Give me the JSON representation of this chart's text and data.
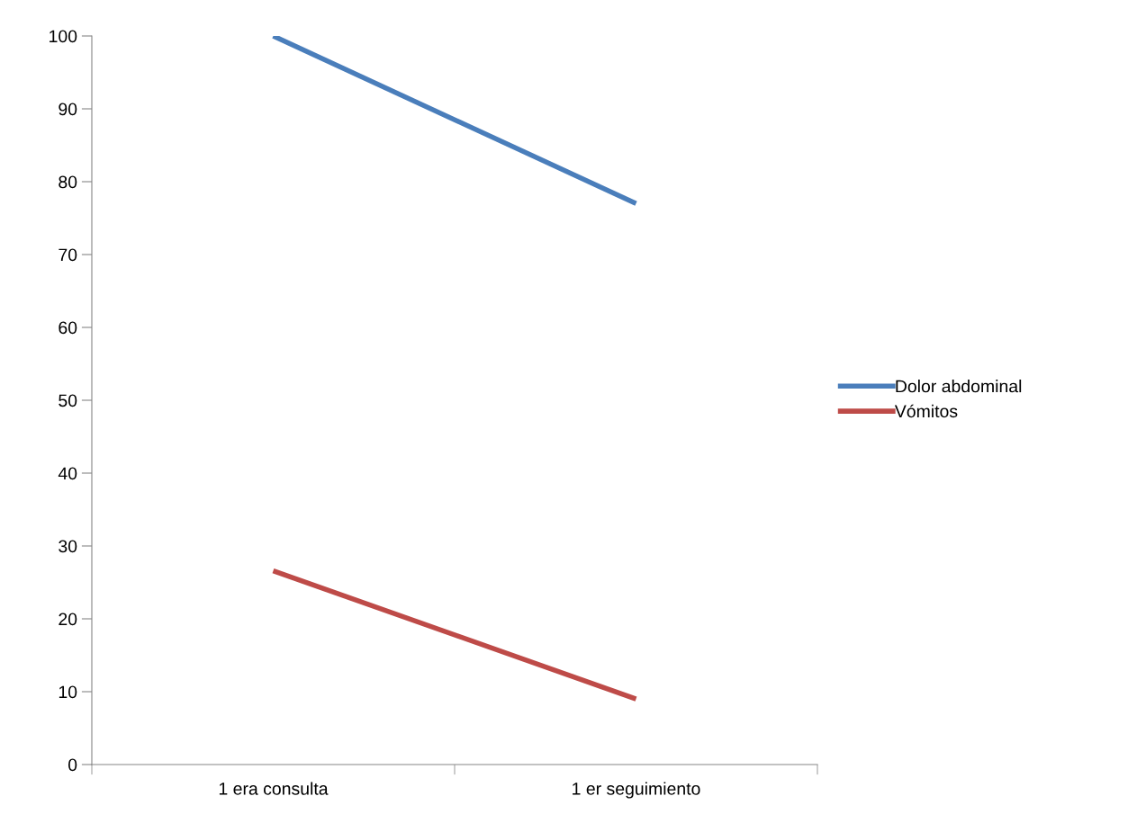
{
  "chart_data": {
    "type": "line",
    "categories": [
      "1 era consulta",
      "1 er seguimiento"
    ],
    "series": [
      {
        "name": "Dolor abdominal",
        "color": "#4a7ebb",
        "values": [
          100,
          77
        ]
      },
      {
        "name": "Vómitos",
        "color": "#be4b48",
        "values": [
          26.6,
          9
        ]
      }
    ],
    "ylim": [
      0,
      100
    ],
    "yticks": [
      0,
      10,
      20,
      30,
      40,
      50,
      60,
      70,
      80,
      90,
      100
    ],
    "grid": false,
    "legend": "right",
    "marker": "none",
    "line_style": "solid"
  }
}
